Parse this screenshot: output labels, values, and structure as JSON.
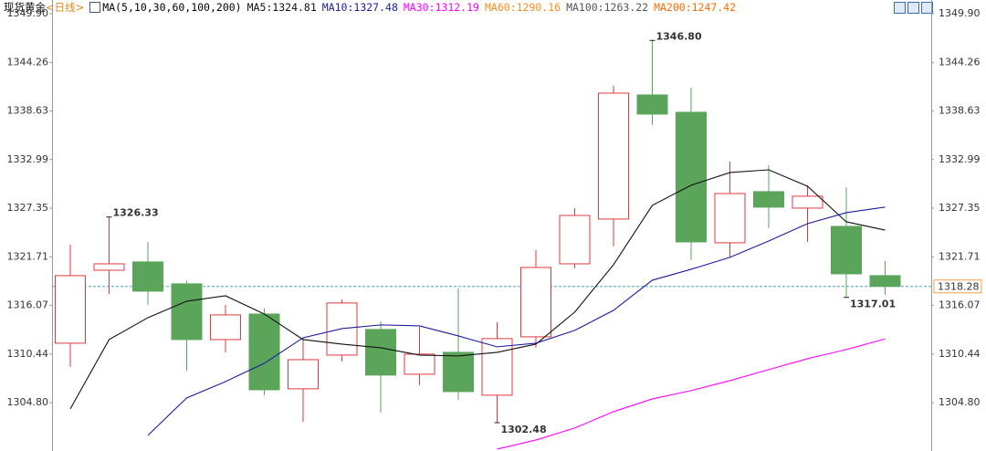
{
  "chart_data": {
    "type": "candlestick",
    "title": "现货黄金",
    "subtitle": "<日线>",
    "legend_title": "MA(5,10,30,60,100,200)",
    "ylim": [
      1299.2,
      1349.9
    ],
    "yticks": [
      {
        "value": 1349.9,
        "label": "1349.90"
      },
      {
        "value": 1344.26,
        "label": "1344.26"
      },
      {
        "value": 1338.63,
        "label": "1338.63"
      },
      {
        "value": 1332.99,
        "label": "1332.99"
      },
      {
        "value": 1327.35,
        "label": "1327.35"
      },
      {
        "value": 1321.71,
        "label": "1321.71"
      },
      {
        "value": 1316.07,
        "label": "1316.07"
      },
      {
        "value": 1310.44,
        "label": "1310.44"
      },
      {
        "value": 1304.8,
        "label": "1304.80"
      }
    ],
    "up_color": "#e0393e",
    "down_color": "#5ba55b",
    "open": [
      1311.7,
      1320.16,
      1321.12,
      1318.58,
      1312.12,
      1315.08,
      1306.41,
      1310.32,
      1313.29,
      1308.1,
      1310.64,
      1305.67,
      1312.44,
      1320.9,
      1326.09,
      1340.48,
      1338.47,
      1323.34,
      1329.27,
      1327.36,
      1325.24,
      1319.53
    ],
    "high": [
      1323.13,
      1326.33,
      1323.44,
      1318.9,
      1316.14,
      1315.72,
      1312.23,
      1316.78,
      1314.24,
      1313.61,
      1318.05,
      1314.13,
      1322.49,
      1327.36,
      1341.54,
      1346.8,
      1341.33,
      1332.76,
      1332.33,
      1330.01,
      1329.79,
      1321.22
    ],
    "low": [
      1308.95,
      1317.41,
      1316.14,
      1308.52,
      1310.64,
      1305.67,
      1302.6,
      1309.58,
      1303.66,
      1306.83,
      1305.14,
      1302.48,
      1311.17,
      1320.38,
      1322.92,
      1337.0,
      1321.33,
      1321.65,
      1325.03,
      1323.44,
      1317.01,
      1317.31
    ],
    "close": [
      1319.53,
      1320.9,
      1317.73,
      1312.12,
      1314.98,
      1306.3,
      1309.79,
      1316.36,
      1308.0,
      1310.43,
      1306.09,
      1312.23,
      1320.48,
      1326.51,
      1340.69,
      1338.26,
      1323.44,
      1329.05,
      1327.47,
      1328.74,
      1319.74,
      1318.28
    ],
    "series": [
      {
        "name": "MA5:1324.81",
        "color": "#111111",
        "values": [
          1304.08,
          1312.12,
          1314.66,
          1316.57,
          1317.2,
          1315.08,
          1312.12,
          1311.59,
          1311.17,
          1310.32,
          1310.22,
          1310.64,
          1311.59,
          1315.3,
          1320.8,
          1327.68,
          1330.01,
          1331.49,
          1331.8,
          1329.9,
          1325.77,
          1324.81
        ]
      },
      {
        "name": "MA10:1327.48",
        "color": "#1c1ca0",
        "values": [
          null,
          null,
          1301.01,
          1305.35,
          1307.25,
          1309.37,
          1312.33,
          1313.39,
          1313.82,
          1313.71,
          1312.54,
          1311.28,
          1311.7,
          1313.18,
          1315.51,
          1319.0,
          1320.27,
          1321.65,
          1323.55,
          1325.56,
          1326.83,
          1327.48
        ]
      },
      {
        "name": "MA30:1312.19",
        "color": "#ff00ff",
        "values": [
          null,
          null,
          null,
          null,
          null,
          null,
          null,
          null,
          null,
          null,
          null,
          1299.42,
          1300.48,
          1301.86,
          1303.76,
          1305.24,
          1306.2,
          1307.36,
          1308.63,
          1309.9,
          1310.96,
          1312.19
        ]
      },
      {
        "name": "MA60:1290.16",
        "color": "#ff8c1a"
      },
      {
        "name": "MA100:1263.22",
        "color": "#555555"
      },
      {
        "name": "MA200:1247.42",
        "color": "#ff6a00"
      }
    ],
    "annotations": [
      {
        "text": "1346.80",
        "value": 1346.8
      },
      {
        "text": "1326.33",
        "value": 1326.33
      },
      {
        "text": "1302.48",
        "value": 1302.48
      },
      {
        "text": "1317.01",
        "value": 1317.01
      }
    ],
    "current": {
      "value": 1318.28,
      "label": "1318.28"
    }
  }
}
